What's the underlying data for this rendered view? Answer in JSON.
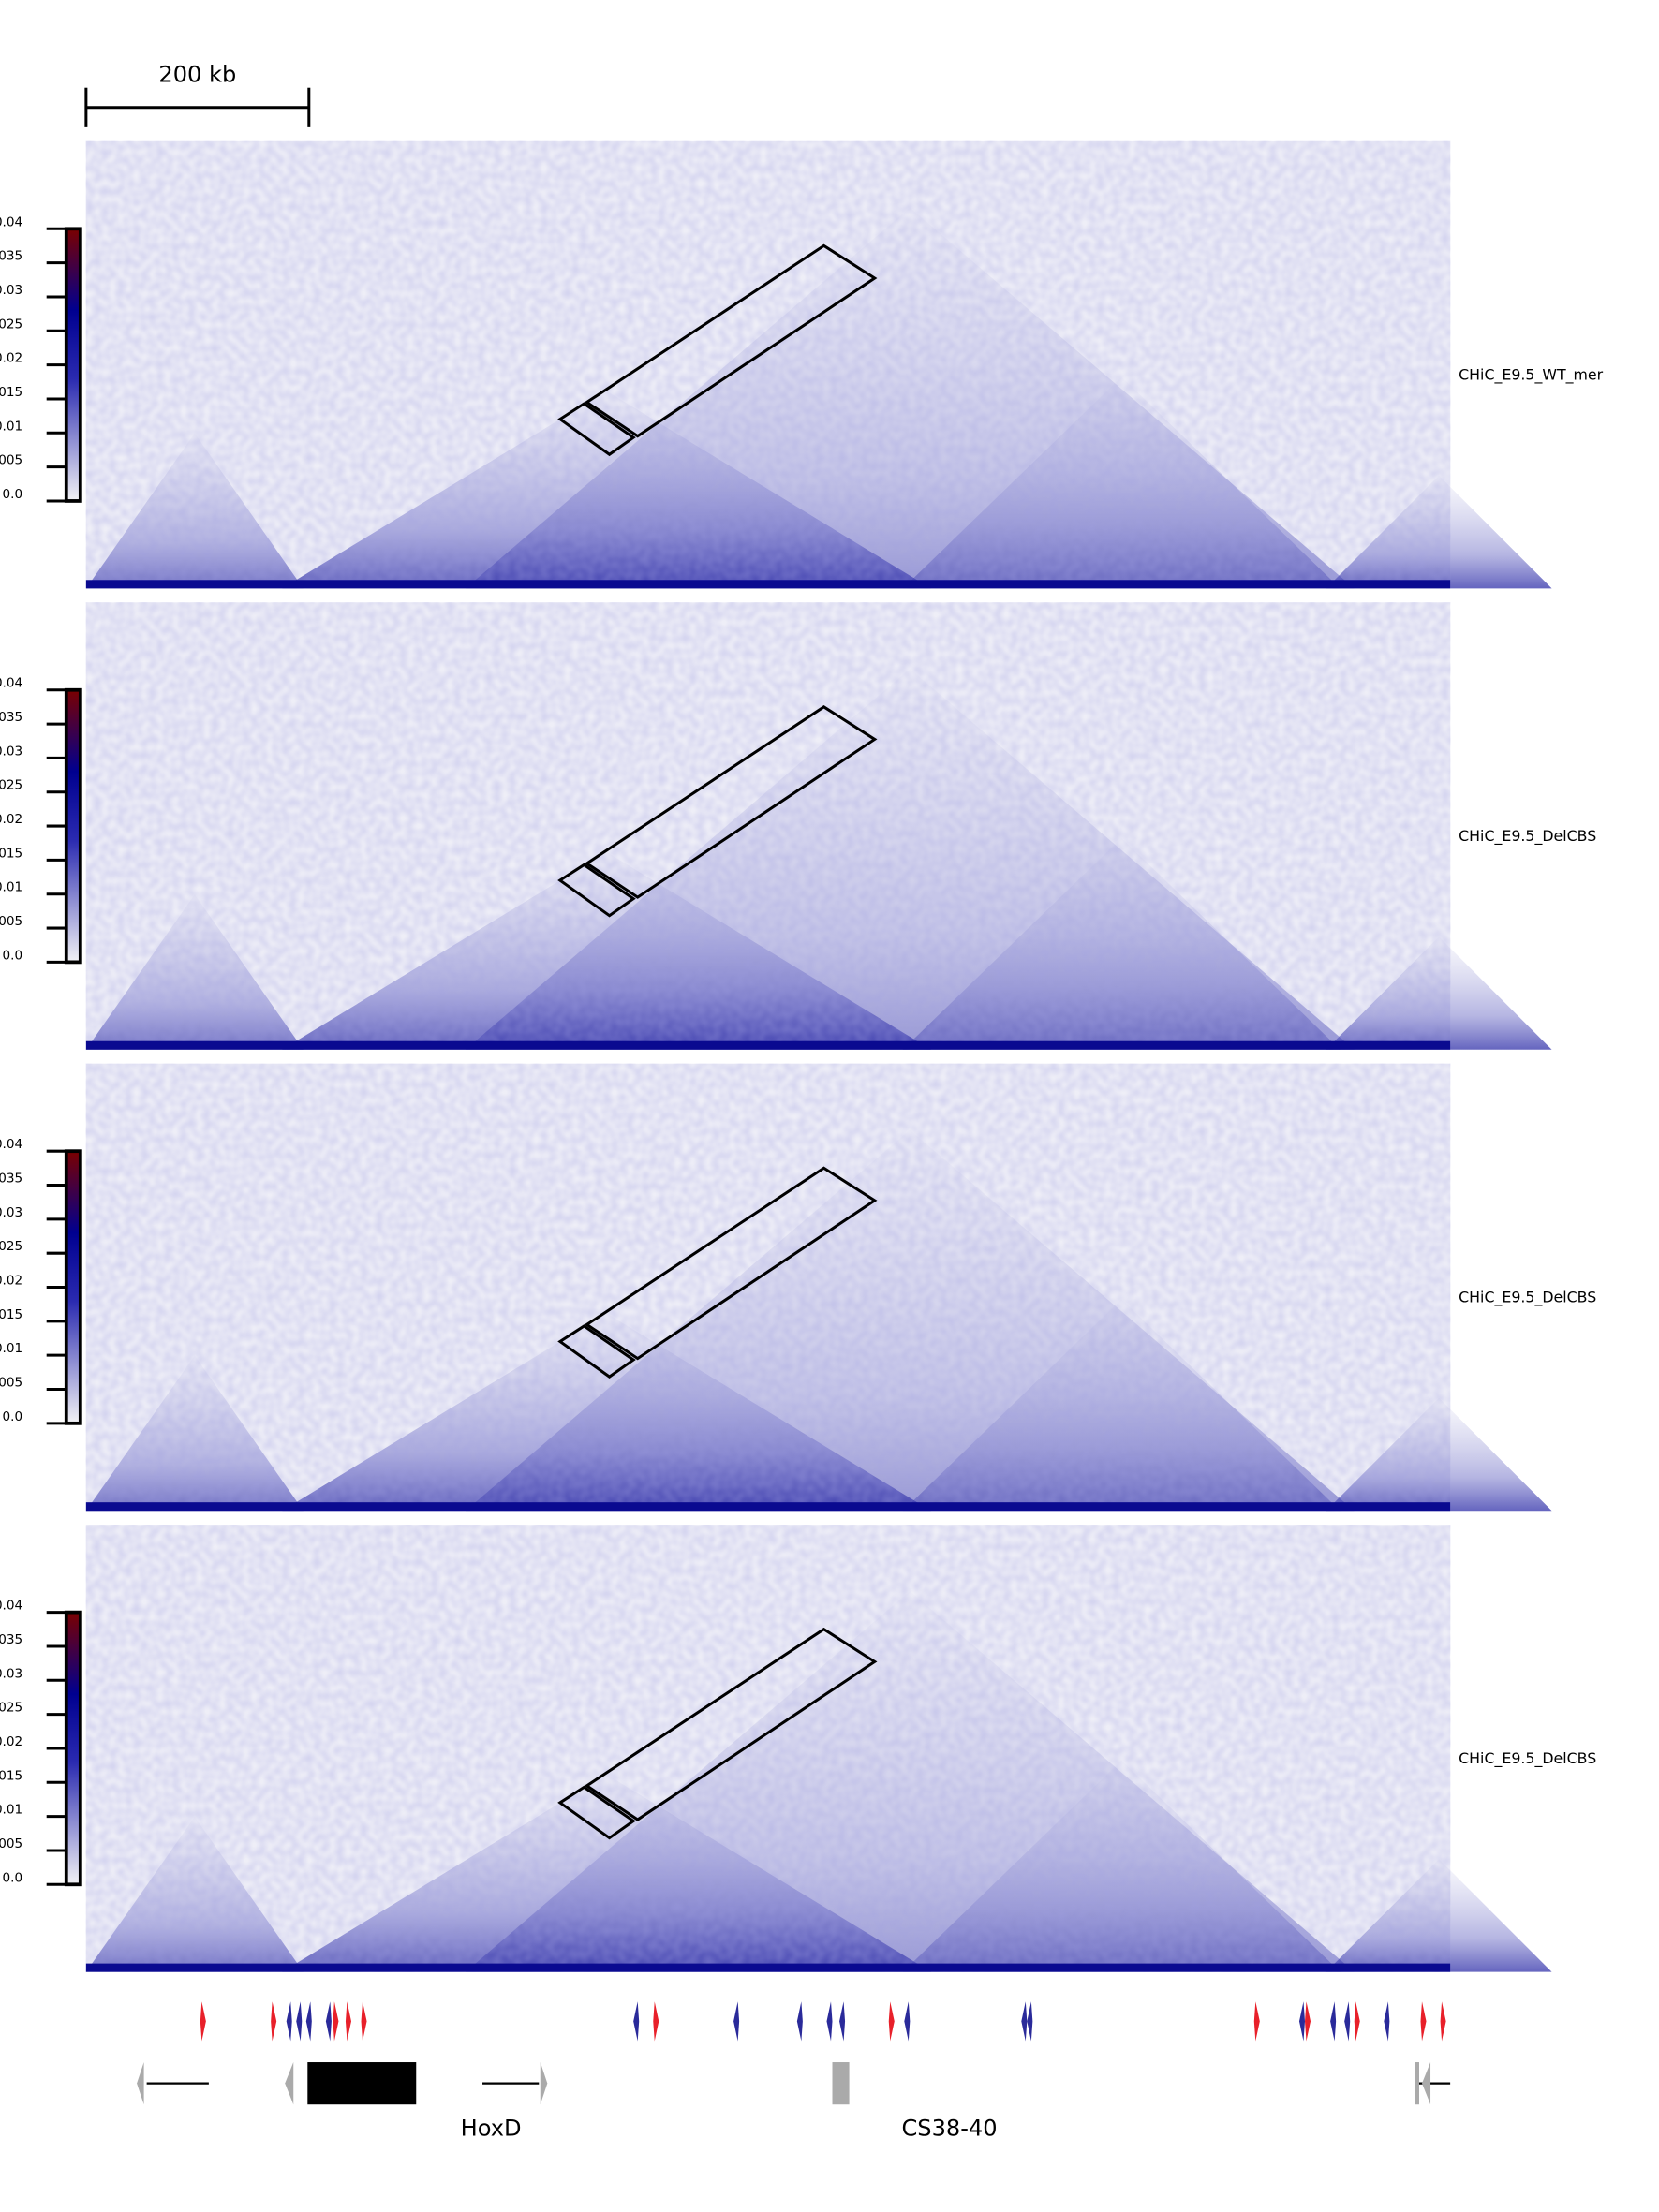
{
  "scale_bar": {
    "label": "200 kb"
  },
  "colorbar": {
    "lim": [
      0,
      0.04
    ],
    "ticks": [
      {
        "value": 0,
        "label": "0.0"
      },
      0.005,
      0.01,
      0.015,
      0.02,
      0.025,
      0.03,
      0.035,
      0.04
    ]
  },
  "tracks": [
    {
      "name": "CHiC_E9.5_WT_mer"
    },
    {
      "name": "CHiC_E9.5_DelCBS"
    },
    {
      "name": "CHiC_E9.5_DelCBS"
    },
    {
      "name": "CHiC_E9.5_DelCBS"
    }
  ],
  "genes": {
    "labels": [
      "HoxD",
      "CS38-40"
    ]
  }
}
